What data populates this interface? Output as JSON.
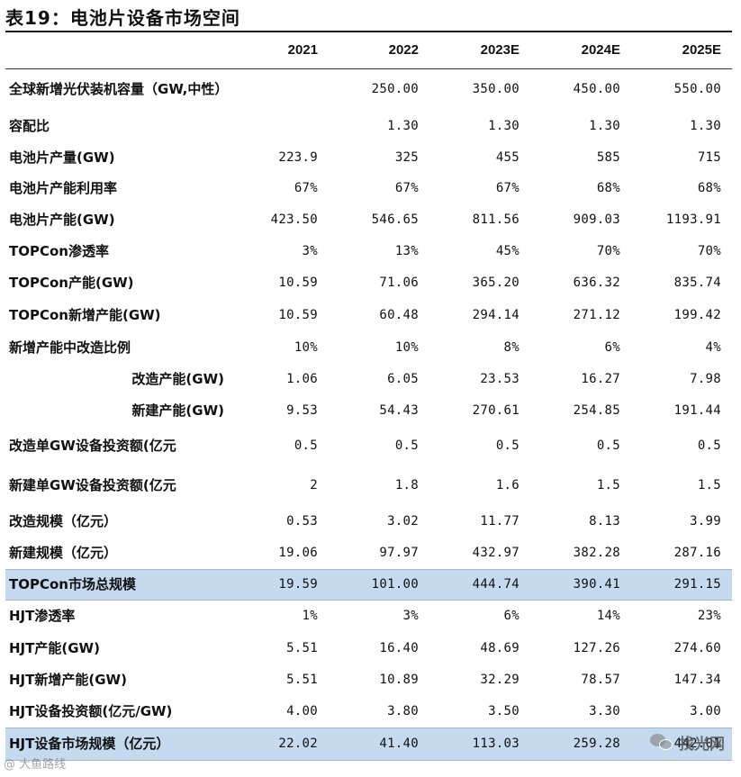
{
  "title": "表19：电池片设备市场空间",
  "columns": [
    "2021",
    "2022",
    "2023E",
    "2024E",
    "2025E"
  ],
  "rows": [
    {
      "label": "全球新增光伏装机容量（GW,中性）",
      "values": [
        "",
        "250.00",
        "350.00",
        "450.00",
        "550.00"
      ],
      "h": 46
    },
    {
      "label": "容配比",
      "values": [
        "",
        "1.30",
        "1.30",
        "1.30",
        "1.30"
      ],
      "h": 35
    },
    {
      "label": "电池片产量(GW)",
      "values": [
        "223.9",
        "325",
        "455",
        "585",
        "715"
      ],
      "h": 35
    },
    {
      "label": "电池片产能利用率",
      "values": [
        "67%",
        "67%",
        "67%",
        "68%",
        "68%"
      ],
      "h": 34
    },
    {
      "label": "电池片产能(GW)",
      "values": [
        "423.50",
        "546.65",
        "811.56",
        "909.03",
        "1193.91"
      ],
      "h": 35
    },
    {
      "label": "TOPCon渗透率",
      "values": [
        "3%",
        "13%",
        "45%",
        "70%",
        "70%"
      ],
      "h": 35
    },
    {
      "label": "TOPCon产能(GW)",
      "values": [
        "10.59",
        "71.06",
        "365.20",
        "636.32",
        "835.74"
      ],
      "h": 36
    },
    {
      "label": "TOPCon新增产能(GW)",
      "values": [
        "10.59",
        "60.48",
        "294.14",
        "271.12",
        "199.42"
      ],
      "h": 36
    },
    {
      "label": "新增产能中改造比例",
      "values": [
        "10%",
        "10%",
        "8%",
        "6%",
        "4%"
      ],
      "h": 35
    },
    {
      "label": "改造产能(GW)",
      "values": [
        "1.06",
        "6.05",
        "23.53",
        "16.27",
        "7.98"
      ],
      "h": 35,
      "indent": true
    },
    {
      "label": "新建产能(GW)",
      "values": [
        "9.53",
        "54.43",
        "270.61",
        "254.85",
        "191.44"
      ],
      "h": 35,
      "indent": true
    },
    {
      "label": "改造单GW设备投资额(亿元",
      "values": [
        "0.5",
        "0.5",
        "0.5",
        "0.5",
        "0.5"
      ],
      "h": 44
    },
    {
      "label": "新建单GW设备投资额(亿元",
      "values": [
        "2",
        "1.8",
        "1.6",
        "1.5",
        "1.5"
      ],
      "h": 44
    },
    {
      "label": "改造规模（亿元）",
      "values": [
        "0.53",
        "3.02",
        "11.77",
        "8.13",
        "3.99"
      ],
      "h": 35
    },
    {
      "label": "新建规模（亿元）",
      "values": [
        "19.06",
        "97.97",
        "432.97",
        "382.28",
        "287.16"
      ],
      "h": 36
    },
    {
      "label": "TOPCon市场总规模",
      "values": [
        "19.59",
        "101.00",
        "444.74",
        "390.41",
        "291.15"
      ],
      "h": 34,
      "highlight": true
    },
    {
      "label": "HJT渗透率",
      "values": [
        "1%",
        "3%",
        "6%",
        "14%",
        "23%"
      ],
      "h": 36
    },
    {
      "label": "HJT产能(GW)",
      "values": [
        "5.51",
        "16.40",
        "48.69",
        "127.26",
        "274.60"
      ],
      "h": 35
    },
    {
      "label": "HJT新增产能(GW)",
      "values": [
        "5.51",
        "10.89",
        "32.29",
        "78.57",
        "147.34"
      ],
      "h": 36
    },
    {
      "label": "HJT设备投资额(亿元/GW)",
      "values": [
        "4.00",
        "3.80",
        "3.50",
        "3.30",
        "3.00"
      ],
      "h": 35
    },
    {
      "label": "HJT设备市场规模（亿元）",
      "values": [
        "22.02",
        "41.40",
        "113.03",
        "259.28",
        "442.01"
      ],
      "h": 36,
      "highlight": true
    }
  ],
  "watermark": {
    "left": "@ 大鱼路线",
    "right": "找光网",
    "icon": "wechat-icon"
  }
}
